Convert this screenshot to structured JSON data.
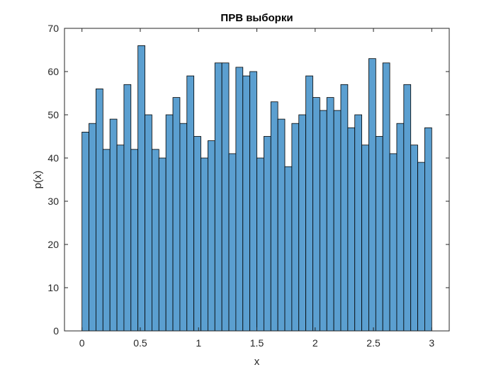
{
  "chart_data": {
    "type": "bar",
    "title": "ПРВ выборки",
    "xlabel": "x",
    "ylabel": "p(x)",
    "xlim": [
      -0.15,
      3.15
    ],
    "ylim": [
      0,
      70
    ],
    "bin_edges": [
      0,
      0.06,
      0.12,
      0.18,
      0.24,
      0.3,
      0.36,
      0.42,
      0.48,
      0.54,
      0.6,
      0.66,
      0.72,
      0.78,
      0.84,
      0.9,
      0.96,
      1.02,
      1.08,
      1.14,
      1.2,
      1.26,
      1.32,
      1.38,
      1.44,
      1.5,
      1.56,
      1.62,
      1.68,
      1.74,
      1.8,
      1.86,
      1.92,
      1.98,
      2.04,
      2.1,
      2.16,
      2.22,
      2.28,
      2.34,
      2.4,
      2.46,
      2.52,
      2.58,
      2.64,
      2.7,
      2.76,
      2.82,
      2.88,
      2.94,
      3.0
    ],
    "values": [
      46,
      48,
      56,
      42,
      49,
      43,
      57,
      42,
      66,
      50,
      42,
      40,
      50,
      54,
      48,
      59,
      45,
      40,
      44,
      62,
      62,
      41,
      61,
      59,
      60,
      40,
      45,
      53,
      49,
      38,
      48,
      50,
      59,
      54,
      51,
      54,
      51,
      57,
      47,
      50,
      43,
      63,
      45,
      62,
      41,
      48,
      57,
      43,
      39,
      47
    ],
    "xticks": [
      0,
      0.5,
      1,
      1.5,
      2,
      2.5,
      3
    ],
    "xtick_labels": [
      "0",
      "0.5",
      "1",
      "1.5",
      "2",
      "2.5",
      "3"
    ],
    "yticks": [
      0,
      10,
      20,
      30,
      40,
      50,
      60,
      70
    ],
    "ytick_labels": [
      "0",
      "10",
      "20",
      "30",
      "40",
      "50",
      "60",
      "70"
    ],
    "grid": false,
    "legend": "none",
    "colors": {
      "bar_fill": "#5b9fd0",
      "bar_edge": "#000000",
      "axes": "#262626",
      "background": "#ffffff"
    }
  }
}
